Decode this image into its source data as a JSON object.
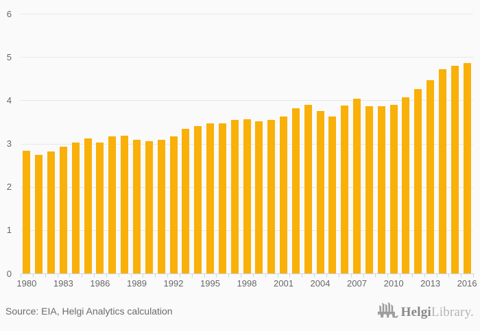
{
  "chart_data": {
    "type": "bar",
    "categories": [
      1980,
      1981,
      1982,
      1983,
      1984,
      1985,
      1986,
      1987,
      1988,
      1989,
      1990,
      1991,
      1992,
      1993,
      1994,
      1995,
      1996,
      1997,
      1998,
      1999,
      2000,
      2001,
      2002,
      2003,
      2004,
      2005,
      2006,
      2007,
      2008,
      2009,
      2010,
      2011,
      2012,
      2013,
      2014,
      2015,
      2016
    ],
    "values": [
      2.85,
      2.74,
      2.83,
      2.93,
      3.03,
      3.13,
      3.03,
      3.17,
      3.19,
      3.1,
      3.07,
      3.09,
      3.17,
      3.35,
      3.41,
      3.48,
      3.48,
      3.55,
      3.57,
      3.52,
      3.55,
      3.63,
      3.82,
      3.9,
      3.76,
      3.64,
      3.88,
      4.05,
      3.87,
      3.87,
      3.9,
      4.07,
      4.26,
      4.47,
      4.72,
      4.8,
      4.87
    ],
    "title": "",
    "xlabel": "",
    "ylabel": "",
    "ylim": [
      0,
      6
    ],
    "yticks": [
      0,
      1,
      2,
      3,
      4,
      5,
      6
    ],
    "xtick_labels": [
      1980,
      1983,
      1986,
      1989,
      1992,
      1995,
      1998,
      2001,
      2004,
      2007,
      2010,
      2013,
      2016
    ],
    "grid": true,
    "legend": "none",
    "bar_color": "#f9b009",
    "background_color": "#fafafa",
    "gridline_color": "#e7e7e7",
    "axis_line_color": "#ccd6eb",
    "label_color": "#666666"
  },
  "footer": {
    "source_label": "Source: EIA, Helgi Analytics calculation",
    "logo": {
      "icon": "helgi-bridge-icon",
      "brand_bold": "Helgi",
      "brand_light": "Library."
    }
  }
}
